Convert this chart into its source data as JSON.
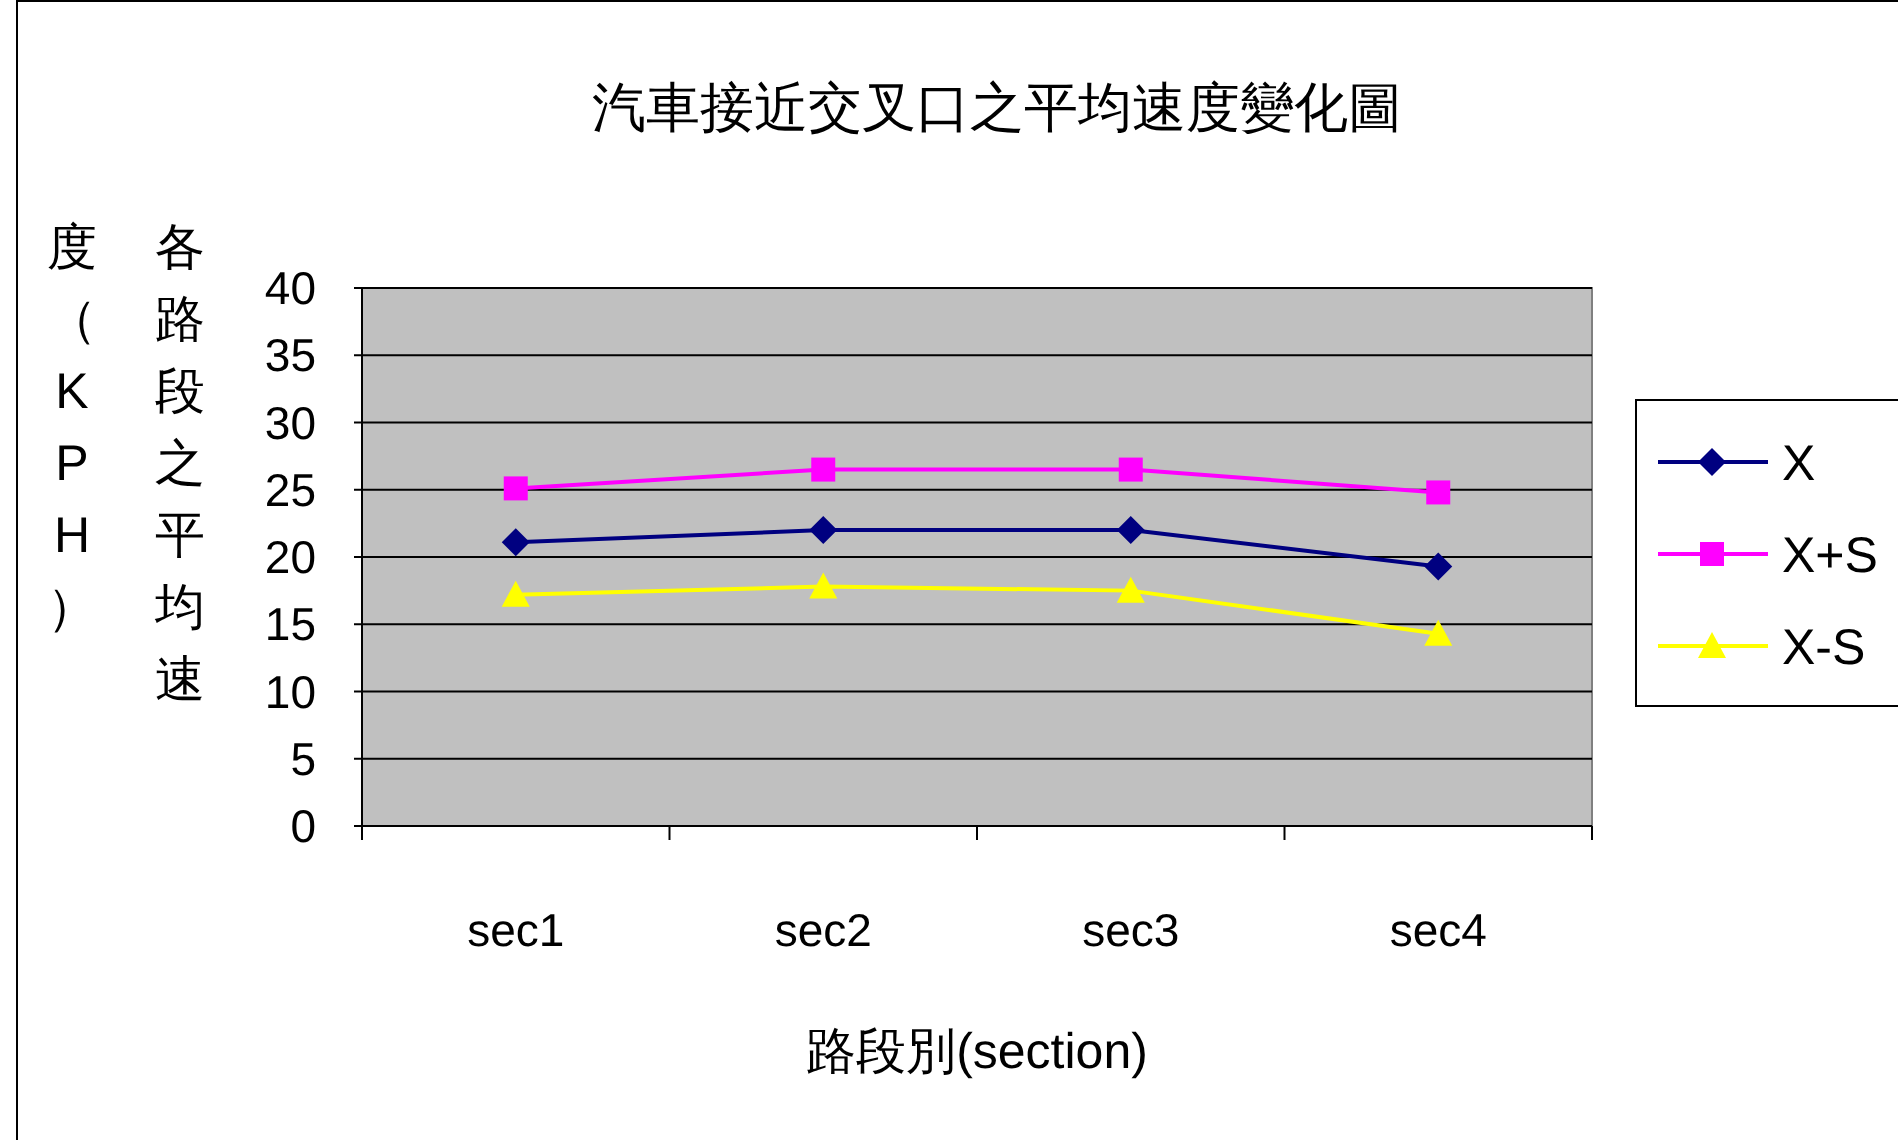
{
  "chart_data": {
    "type": "line",
    "title": "汽車接近交叉口之平均速度變化圖",
    "xlabel": "路段別(section)",
    "ylabel": "各路段之平均速度（KPH）",
    "categories": [
      "sec1",
      "sec2",
      "sec3",
      "sec4"
    ],
    "series": [
      {
        "name": "X",
        "color": "#000080",
        "marker": "diamond",
        "values": [
          21.1,
          22.0,
          22.0,
          19.3
        ]
      },
      {
        "name": "X+S",
        "color": "#ff00ff",
        "marker": "square",
        "values": [
          25.1,
          26.5,
          26.5,
          24.8
        ]
      },
      {
        "name": "X-S",
        "color": "#ffff00",
        "marker": "triangle",
        "values": [
          17.2,
          17.8,
          17.5,
          14.3
        ]
      }
    ],
    "ylim": [
      0,
      40
    ],
    "yticks": [
      0,
      5,
      10,
      15,
      20,
      25,
      30,
      35,
      40
    ],
    "grid": "y",
    "legend": "right"
  }
}
